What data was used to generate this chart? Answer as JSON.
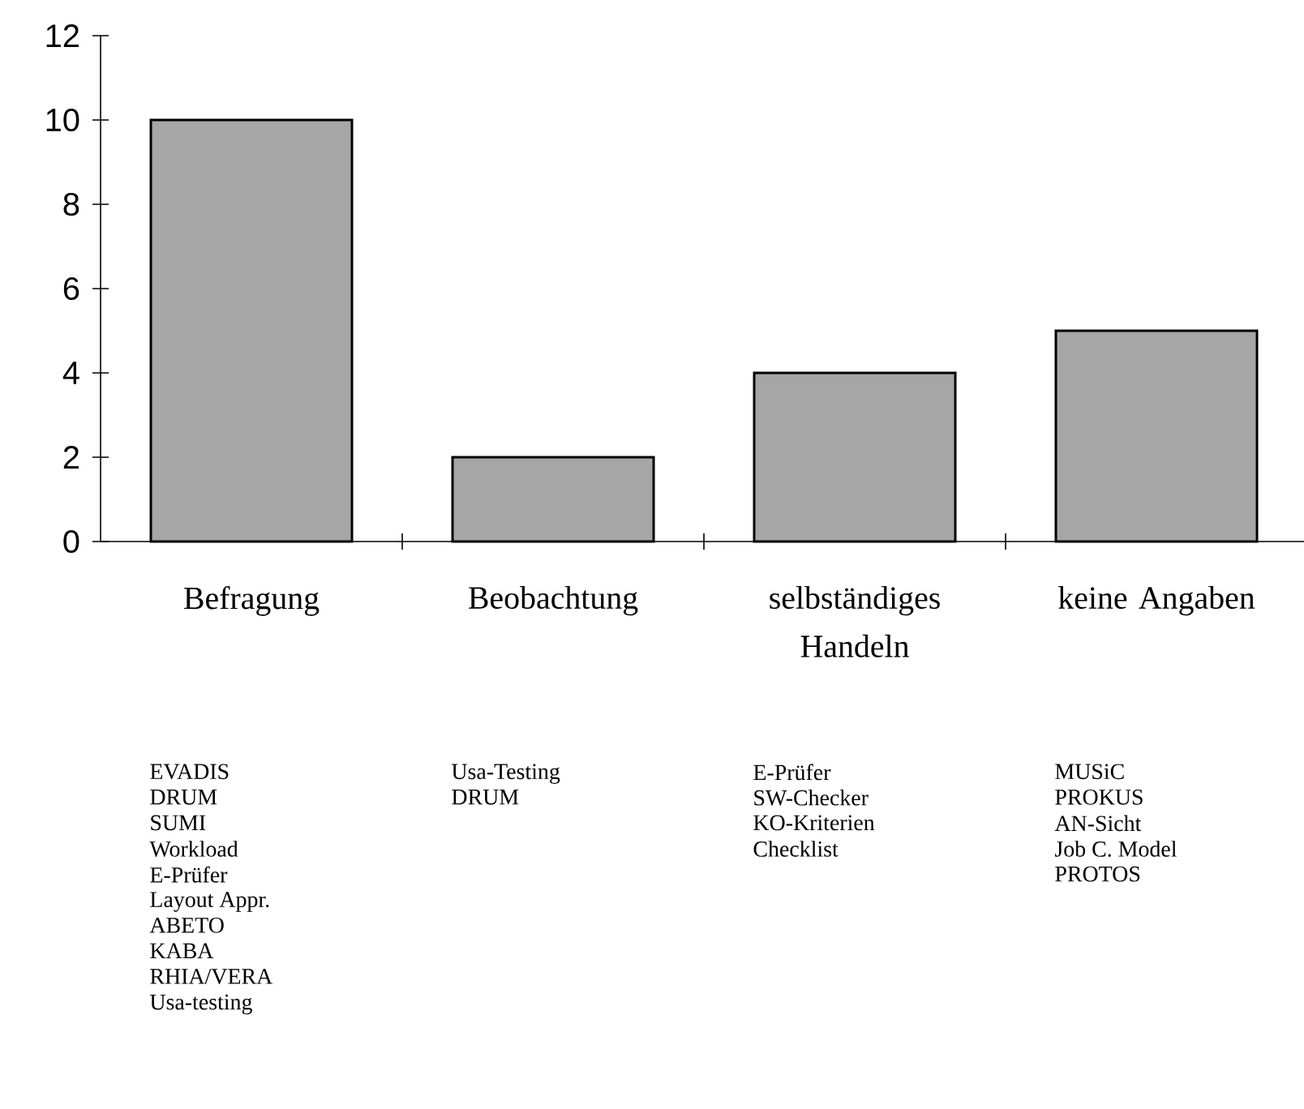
{
  "chart_data": {
    "type": "bar",
    "categories": [
      "Befragung",
      "Beobachtung",
      "selbständiges Handeln",
      "keine Angaben"
    ],
    "values": [
      10,
      2,
      4,
      5
    ],
    "color": "#a6a6a6",
    "ylim": [
      0,
      12
    ],
    "yticks": [
      0,
      2,
      4,
      6,
      8,
      10,
      12
    ],
    "grid": false,
    "annotations": [
      "EVADIS",
      "DRUM",
      "SUMI",
      "Workload",
      "E-Prüfer",
      "Layout Appr.",
      "ABETO",
      "KABA",
      "RHIA/VERA",
      "Usa-testing",
      "Usa-Testing",
      "DRUM",
      "E-Prüfer",
      "SW-Checker",
      "KO-Kriterien",
      "Checklist",
      "MUSiC",
      "PROKUS",
      "AN-Sicht",
      "Job C. Model",
      "PROTOS"
    ]
  }
}
